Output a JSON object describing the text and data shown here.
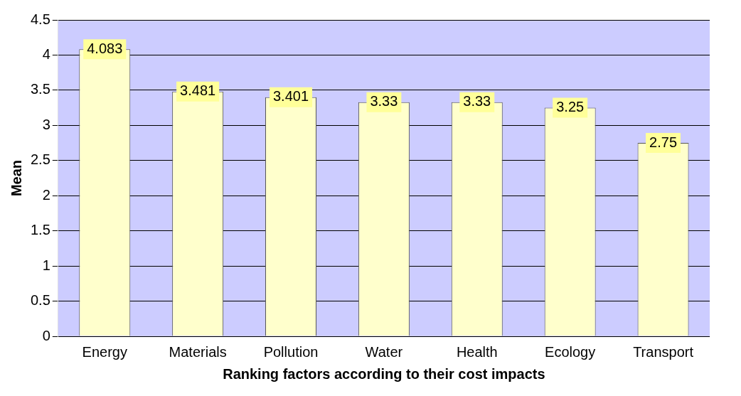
{
  "chart_data": {
    "type": "bar",
    "xlabel": "Ranking factors according to their cost impacts",
    "ylabel": "Mean",
    "categories": [
      "Energy",
      "Materials",
      "Pollution",
      "Water",
      "Health",
      "Ecology",
      "Transport"
    ],
    "values": [
      4.083,
      3.481,
      3.401,
      3.33,
      3.33,
      3.25,
      2.75
    ],
    "color": "#ffffcc",
    "ylim": [
      0,
      4.5
    ],
    "yticks": [
      0,
      0.5,
      1,
      1.5,
      2,
      2.5,
      3,
      3.5,
      4,
      4.5
    ],
    "grid": "y",
    "data_labels": true,
    "legend": false
  }
}
